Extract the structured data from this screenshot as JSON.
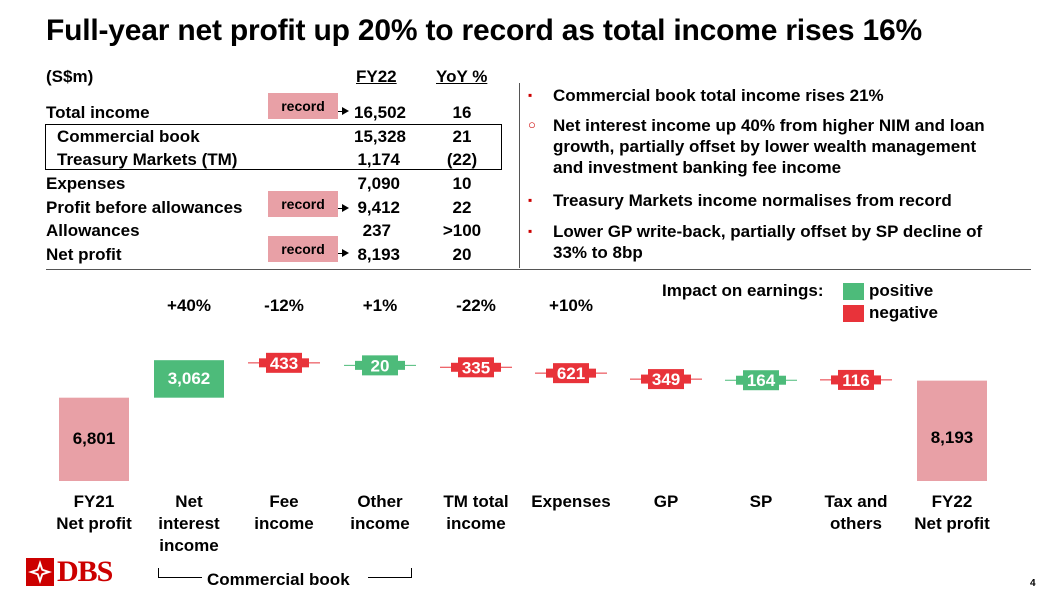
{
  "title": "Full-year net profit up 20% to record as total income rises 16%",
  "table": {
    "unit_label": "(S$m)",
    "col_fy": "FY22",
    "col_yoy": "YoY %",
    "record_label": "record",
    "rows": [
      {
        "label": "Total income",
        "fy": "16,502",
        "yoy": "16"
      },
      {
        "label": "Commercial book",
        "fy": "15,328",
        "yoy": "21"
      },
      {
        "label": "Treasury Markets (TM)",
        "fy": "1,174",
        "yoy": "(22)"
      },
      {
        "label": "Expenses",
        "fy": "7,090",
        "yoy": "10"
      },
      {
        "label": "Profit before allowances",
        "fy": "9,412",
        "yoy": "22"
      },
      {
        "label": "Allowances",
        "fy": "237",
        "yoy": ">100"
      },
      {
        "label": "Net profit",
        "fy": "8,193",
        "yoy": "20"
      }
    ]
  },
  "bullets": [
    {
      "symbol": "▪",
      "text": "Commercial book total income rises 21%"
    },
    {
      "symbol": "○",
      "text": "Net interest income up 40% from higher NIM and loan growth, partially offset by lower wealth management and investment banking fee income"
    },
    {
      "symbol": "▪",
      "text": "Treasury Markets income normalises from record"
    },
    {
      "symbol": "▪",
      "text": "Lower GP write-back, partially offset by SP decline of 33% to 8bp"
    }
  ],
  "legend": {
    "title": "Impact on earnings:",
    "positive": "positive",
    "negative": "negative"
  },
  "colors": {
    "positive": "#4dbb7a",
    "negative": "#e8333a",
    "total": "#e8a0a6",
    "brand_red": "#cc0000"
  },
  "chart_data": {
    "type": "bar",
    "subtype": "waterfall",
    "categories": [
      "FY21 Net profit",
      "Net interest income",
      "Fee income",
      "Other income",
      "TM total income",
      "Expenses",
      "GP",
      "SP",
      "Tax and others",
      "FY22 Net profit"
    ],
    "labels": [
      "FY21\nNet profit",
      "Net\ninterest\nincome",
      "Fee\nincome",
      "Other\nincome",
      "TM total\nincome",
      "Expenses",
      "GP",
      "SP",
      "Tax and\nothers",
      "FY22\nNet profit"
    ],
    "values": [
      6801,
      3062,
      -433,
      20,
      -335,
      -621,
      -349,
      164,
      -116,
      8193
    ],
    "value_labels": [
      "6,801",
      "3,062",
      "433",
      "20",
      "335",
      "621",
      "349",
      "164",
      "116",
      "8,193"
    ],
    "kinds": [
      "total",
      "positive",
      "negative",
      "positive",
      "negative",
      "negative",
      "negative",
      "positive",
      "negative",
      "total"
    ],
    "pct_changes": [
      "",
      "+40%",
      "-12%",
      "+1%",
      "-22%",
      "+10%",
      "",
      "",
      "",
      ""
    ],
    "group_label": "Commercial book"
  },
  "footer": {
    "logo_text": "DBS",
    "page_number": "4"
  }
}
